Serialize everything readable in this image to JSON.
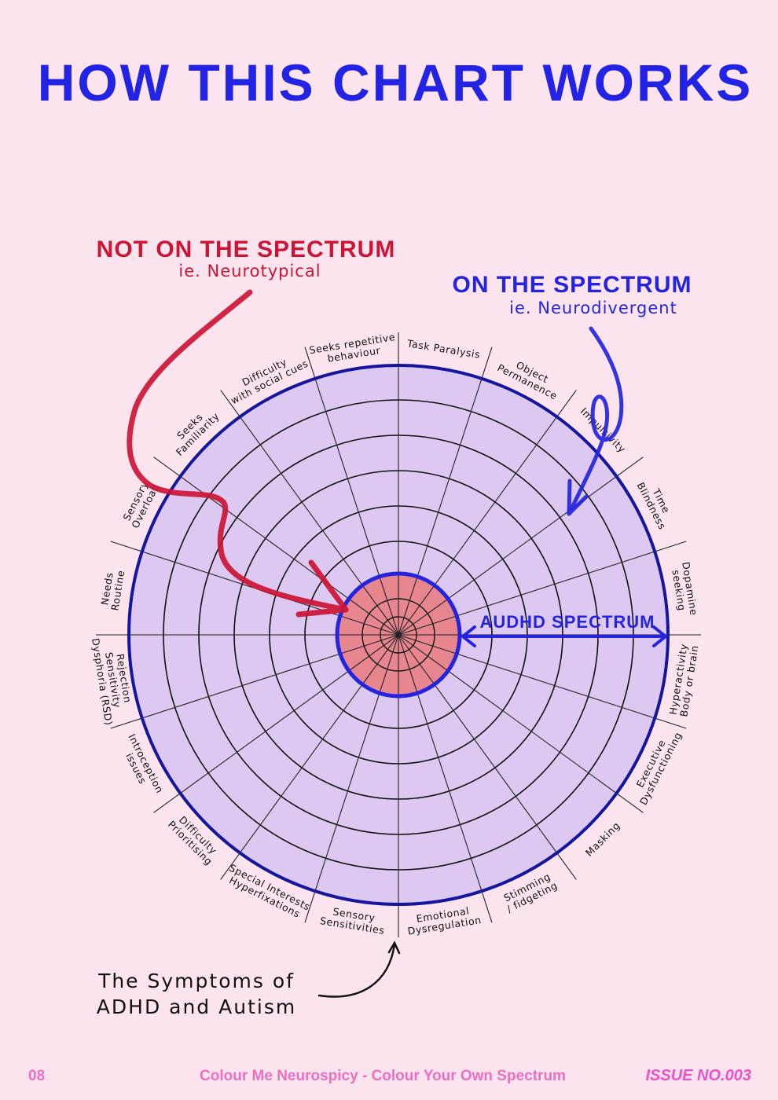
{
  "title": "HOW THIS CHART WORKS",
  "not_on_spectrum": {
    "heading": "NOT ON THE SPECTRUM",
    "sub": "ie. Neurotypical"
  },
  "on_spectrum": {
    "heading": "ON THE SPECTRUM",
    "sub": "ie. Neurodivergent"
  },
  "spectrum_label": "AUDHD SPECTRUM",
  "note": {
    "line1": "The Symptoms of",
    "line2": "ADHD and Autism"
  },
  "wheel": {
    "segments": [
      [
        "Task Paralysis"
      ],
      [
        "Object",
        "Permanence"
      ],
      [
        "Impulsivity"
      ],
      [
        "Time",
        "Blindness"
      ],
      [
        "Dopamine",
        "seeking"
      ],
      [
        "Hyperactivity",
        "Body or brain"
      ],
      [
        "Executive",
        "Dysfunctioning"
      ],
      [
        "Masking"
      ],
      [
        "Stimming",
        "/ fidgeting"
      ],
      [
        "Emotional",
        "Dysregulation"
      ],
      [
        "Sensory",
        "Sensitivities"
      ],
      [
        "Special Interests",
        "Hyperfixations"
      ],
      [
        "Difficulty",
        "Prioritising"
      ],
      [
        "Introception",
        "issues"
      ],
      [
        "Rejection",
        "Sensitivity",
        "Dysphoria (RSD)"
      ],
      [
        "Needs",
        "Routine"
      ],
      [
        "Sensory",
        "Overload"
      ],
      [
        "Seeks",
        "Familiarity"
      ],
      [
        "Difficulty",
        "with social cues"
      ],
      [
        "Seeks repetitive",
        "behaviour"
      ]
    ]
  },
  "colors": {
    "background": "#fce4ee",
    "title": "#2323e6",
    "red": "#cc1535",
    "blue": "#2424e0",
    "wheel_fill": "#dcc8f0",
    "wheel_stroke": "#15159e",
    "center_fill": "#e8868f",
    "footer": "#ee6fc0"
  },
  "footer": {
    "page": "08",
    "center": "Colour Me Neurospicy - Colour Your Own Spectrum",
    "issue": "ISSUE NO.003"
  }
}
